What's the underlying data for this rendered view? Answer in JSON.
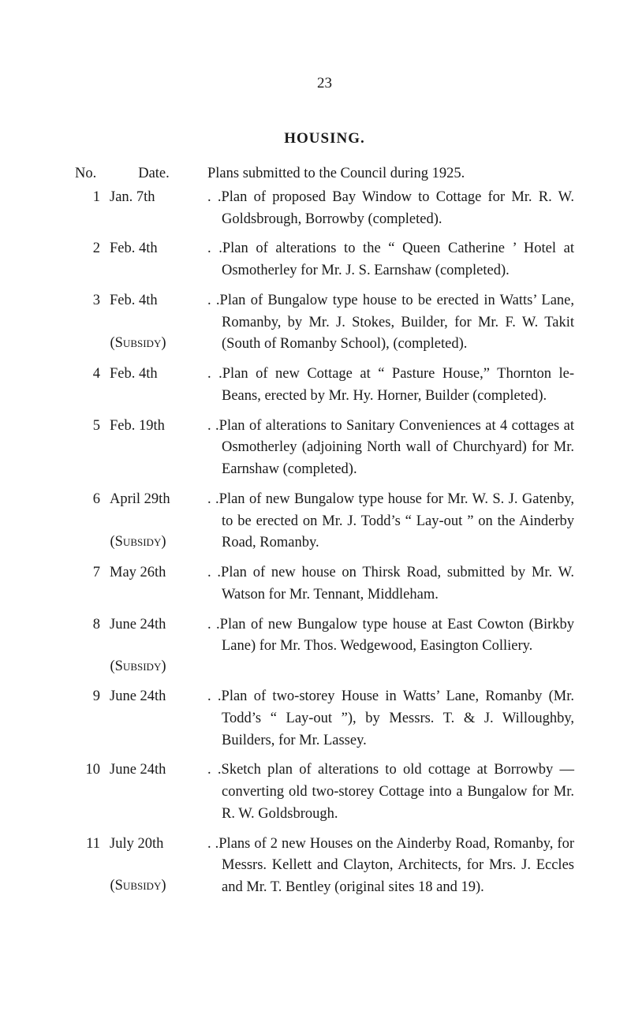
{
  "page_number": "23",
  "heading": "HOUSING.",
  "header": {
    "no": "No.",
    "date": "Date.",
    "plans_intro": "Plans submitted to the Council during 1925."
  },
  "entries": [
    {
      "no": "1",
      "date": "Jan. 7th",
      "subsidy": "",
      "desc": ". .Plan of proposed Bay Window to Cottage for Mr. R. W. Goldsbrough, Borrowby (completed)."
    },
    {
      "no": "2",
      "date": "Feb. 4th",
      "subsidy": "",
      "desc": ". .Plan of alterations to the “ Queen Catherine ’ Hotel at Osmotherley for Mr. J. S. Earnshaw (completed)."
    },
    {
      "no": "3",
      "date": "Feb. 4th",
      "subsidy": "(Subsidy)",
      "desc": ". .Plan of Bungalow type house to be erected in Watts’ Lane, Romanby, by Mr. J. Stokes, Builder, for Mr. F. W. Takit (South of Romanby School), (completed)."
    },
    {
      "no": "4",
      "date": "Feb. 4th",
      "subsidy": "",
      "desc": ". .Plan of new Cottage at “ Pasture House,” Thornton le-Beans, erected by Mr. Hy. Horner, Builder (completed)."
    },
    {
      "no": "5",
      "date": "Feb. 19th",
      "subsidy": "",
      "desc": ". .Plan of alterations to Sanitary Conveniences at 4 cottages at Osmotherley (adjoining North wall of Churchyard) for Mr. Earnshaw (completed)."
    },
    {
      "no": "6",
      "date": "April 29th",
      "subsidy": "(Subsidy)",
      "desc": ". .Plan of new Bungalow type house for Mr. W. S. J. Gatenby, to be erected on Mr. J. Todd’s “ Lay-out ” on the Ainderby Road, Romanby."
    },
    {
      "no": "7",
      "date": "May 26th",
      "subsidy": "",
      "desc": ". .Plan of new house on Thirsk Road, submitted by Mr. W. Watson for Mr. Tennant, Middleham."
    },
    {
      "no": "8",
      "date": "June 24th",
      "subsidy": "(Subsidy)",
      "desc": ". .Plan of new Bungalow type house at East Cowton (Birkby Lane) for Mr. Thos. Wedgewood, Easington Colliery."
    },
    {
      "no": "9",
      "date": "June 24th",
      "subsidy": "",
      "desc": ". .Plan of two-storey House in Watts’ Lane, Romanby (Mr. Todd’s “ Lay-out ”), by Messrs. T. & J. Willoughby, Builders, for Mr. Lassey."
    },
    {
      "no": "10",
      "date": "June 24th",
      "subsidy": "",
      "desc": ". .Sketch plan of alterations to old cottage at Borrowby —converting old two-storey Cottage into a Bungalow for Mr. R. W. Goldsbrough."
    },
    {
      "no": "11",
      "date": "July 20th",
      "subsidy": "(Subsidy)",
      "desc": ". .Plans of 2 new Houses on the Ainderby Road, Romanby, for Messrs. Kellett and Clayton, Architects, for Mrs. J. Eccles and Mr. T. Bentley (original sites 18 and 19)."
    }
  ]
}
